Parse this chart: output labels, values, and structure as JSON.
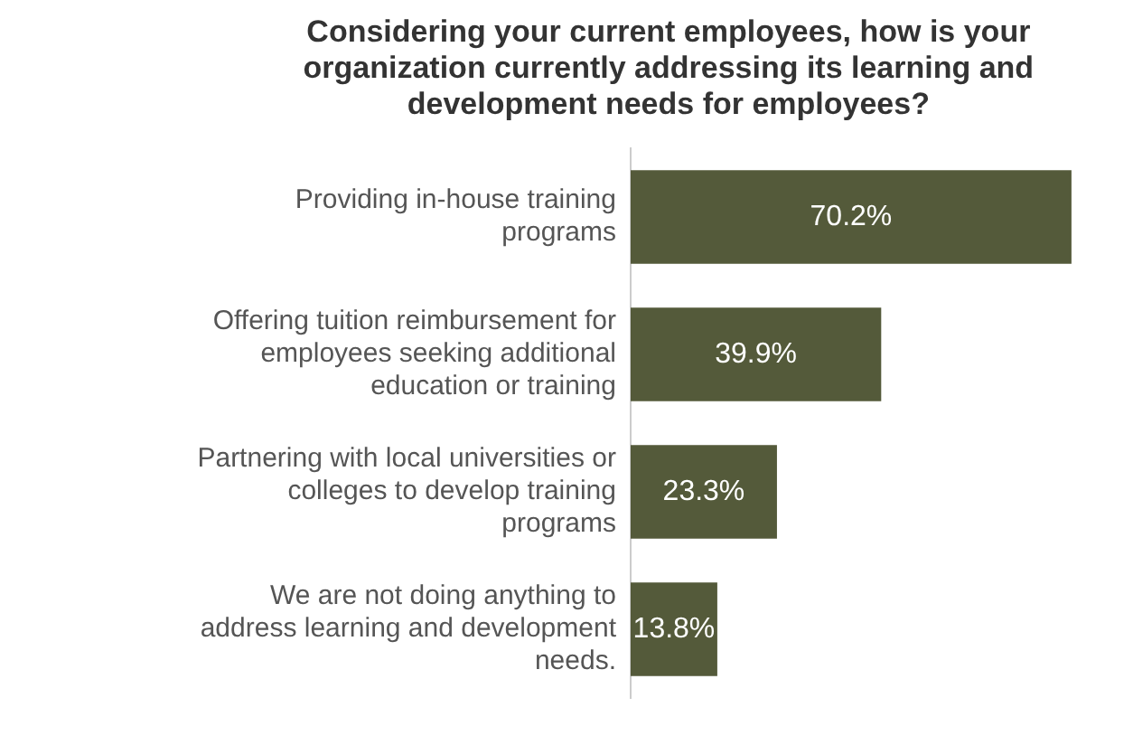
{
  "chart_data": {
    "type": "bar",
    "orientation": "horizontal",
    "title": "Considering your current employees, how is your organization currently addressing its learning and development needs for employees?",
    "categories": [
      "Providing in-house training programs",
      "Offering tuition reimbursement for employees seeking additional education or training",
      "Partnering with local universities or colleges to develop training programs",
      "We are not doing anything to address learning and development needs."
    ],
    "values": [
      70.2,
      39.9,
      23.3,
      13.8
    ],
    "value_labels": [
      "70.2%",
      "39.9%",
      "23.3%",
      "13.8%"
    ],
    "color": "#545a3a",
    "legend": false
  }
}
